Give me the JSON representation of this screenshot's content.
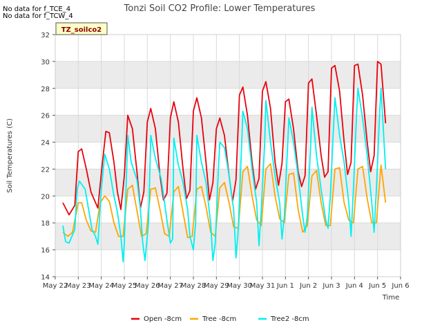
{
  "annotations": [
    "No data for f_TCE_4",
    "No data for f_TCW_4"
  ],
  "site_label": "TZ_soilco2",
  "colors": {
    "open": "#e8000b",
    "tree": "#ffa500",
    "tree2": "#00f0f0",
    "band": "#ebebeb",
    "grid": "#d9d9d9"
  },
  "chart_data": {
    "type": "line",
    "title": "Tonzi Soil CO2 Profile: Lower Temperatures",
    "xlabel": "Time",
    "ylabel": "Soil Temperatures (C)",
    "xlim": [
      0,
      15
    ],
    "ylim": [
      14,
      32
    ],
    "x_ticks": [
      0,
      1,
      2,
      3,
      4,
      5,
      6,
      7,
      8,
      9,
      10,
      11,
      12,
      13,
      14,
      15
    ],
    "x_tick_labels": [
      "May 22",
      "May 23",
      "May 24",
      "May 25",
      "May 26",
      "May 27",
      "May 28",
      "May 29",
      "May 30",
      "May 31",
      "Jun 1",
      "Jun 2",
      "Jun 3",
      "Jun 4",
      "Jun 5",
      "Jun 6"
    ],
    "y_ticks": [
      14,
      16,
      18,
      20,
      22,
      24,
      26,
      28,
      30,
      32
    ],
    "grid": true,
    "legend_position": "bottom",
    "series": [
      {
        "name": "Open -8cm",
        "color": "#e8000b",
        "x": [
          0.33,
          0.6,
          0.85,
          1.0,
          1.15,
          1.35,
          1.55,
          1.85,
          2.05,
          2.2,
          2.35,
          2.55,
          2.7,
          2.85,
          3.0,
          3.15,
          3.35,
          3.55,
          3.7,
          3.85,
          4.0,
          4.15,
          4.35,
          4.55,
          4.7,
          4.85,
          5.0,
          5.15,
          5.35,
          5.55,
          5.7,
          5.85,
          6.0,
          6.15,
          6.35,
          6.55,
          6.7,
          6.85,
          7.0,
          7.15,
          7.35,
          7.55,
          7.7,
          7.85,
          8.0,
          8.15,
          8.35,
          8.55,
          8.7,
          8.85,
          9.0,
          9.15,
          9.35,
          9.55,
          9.7,
          9.85,
          10.0,
          10.15,
          10.35,
          10.55,
          10.7,
          10.85,
          11.0,
          11.15,
          11.35,
          11.55,
          11.7,
          11.85,
          12.0,
          12.15,
          12.35,
          12.55,
          12.7,
          12.85,
          13.0,
          13.15,
          13.35,
          13.55,
          13.7,
          13.85,
          14.0,
          14.15,
          14.35
        ],
        "values": [
          19.5,
          18.6,
          19.3,
          23.3,
          23.5,
          22.0,
          20.3,
          19.1,
          22.5,
          24.8,
          24.7,
          22.5,
          20.3,
          19.0,
          21.5,
          26.0,
          25.0,
          21.8,
          19.1,
          20.3,
          25.5,
          26.5,
          25.0,
          21.5,
          19.7,
          20.2,
          25.8,
          27.0,
          25.5,
          22.0,
          19.8,
          20.4,
          26.3,
          27.3,
          25.8,
          22.5,
          19.7,
          21.0,
          25.0,
          25.8,
          24.5,
          21.5,
          19.6,
          21.2,
          27.5,
          28.1,
          26.0,
          22.5,
          20.5,
          21.3,
          27.8,
          28.5,
          26.5,
          22.5,
          20.8,
          22.4,
          27.0,
          27.2,
          25.0,
          21.8,
          20.7,
          21.5,
          28.4,
          28.7,
          26.0,
          23.0,
          21.4,
          21.8,
          29.5,
          29.7,
          27.8,
          24.0,
          21.6,
          22.5,
          29.7,
          29.8,
          27.5,
          24.0,
          21.8,
          23.0,
          30.0,
          29.8,
          25.4
        ]
      },
      {
        "name": "Tree -8cm",
        "color": "#ffa500",
        "x": [
          0.33,
          0.55,
          0.75,
          1.0,
          1.15,
          1.35,
          1.55,
          1.75,
          1.95,
          2.15,
          2.35,
          2.55,
          2.75,
          2.95,
          3.15,
          3.35,
          3.55,
          3.75,
          3.95,
          4.15,
          4.35,
          4.55,
          4.75,
          4.95,
          5.15,
          5.35,
          5.55,
          5.75,
          5.95,
          6.15,
          6.35,
          6.55,
          6.75,
          6.95,
          7.15,
          7.35,
          7.55,
          7.75,
          7.95,
          8.15,
          8.35,
          8.55,
          8.75,
          8.95,
          9.15,
          9.35,
          9.55,
          9.75,
          9.95,
          10.15,
          10.35,
          10.55,
          10.75,
          10.95,
          11.15,
          11.35,
          11.55,
          11.75,
          11.95,
          12.15,
          12.35,
          12.55,
          12.75,
          12.95,
          13.15,
          13.35,
          13.55,
          13.75,
          13.95,
          14.15,
          14.35
        ],
        "values": [
          17.3,
          17.0,
          17.3,
          19.5,
          19.5,
          18.2,
          17.4,
          17.3,
          19.5,
          20.0,
          19.6,
          18.0,
          17.0,
          17.0,
          20.5,
          20.8,
          18.9,
          17.0,
          17.2,
          20.5,
          20.6,
          19.0,
          17.2,
          17.0,
          20.3,
          20.7,
          18.8,
          16.9,
          17.0,
          20.5,
          20.7,
          19.2,
          17.3,
          17.0,
          20.6,
          21.0,
          19.5,
          17.7,
          17.6,
          21.8,
          22.2,
          20.0,
          18.2,
          17.8,
          22.0,
          22.4,
          20.0,
          18.3,
          18.0,
          21.6,
          21.7,
          19.0,
          17.3,
          17.8,
          21.5,
          21.9,
          19.5,
          17.8,
          17.8,
          22.0,
          22.1,
          19.5,
          18.2,
          18.0,
          22.0,
          22.2,
          19.8,
          18.0,
          18.0,
          22.3,
          19.5
        ]
      },
      {
        "name": "Tree2 -8cm",
        "color": "#00f0f0",
        "x": [
          0.33,
          0.45,
          0.6,
          0.85,
          0.95,
          1.05,
          1.3,
          1.45,
          1.6,
          1.75,
          1.85,
          2.0,
          2.15,
          2.35,
          2.55,
          2.7,
          2.85,
          2.95,
          3.0,
          3.15,
          3.3,
          3.55,
          3.7,
          3.8,
          3.9,
          4.05,
          4.15,
          4.35,
          4.6,
          4.75,
          4.85,
          5.0,
          5.1,
          5.15,
          5.35,
          5.55,
          5.75,
          5.85,
          6.0,
          6.1,
          6.15,
          6.35,
          6.55,
          6.75,
          6.85,
          6.95,
          7.1,
          7.15,
          7.35,
          7.55,
          7.75,
          7.85,
          7.95,
          8.1,
          8.15,
          8.35,
          8.55,
          8.75,
          8.85,
          8.95,
          9.1,
          9.15,
          9.35,
          9.55,
          9.75,
          9.85,
          9.95,
          10.1,
          10.15,
          10.35,
          10.55,
          10.75,
          10.85,
          10.95,
          11.1,
          11.15,
          11.35,
          11.55,
          11.75,
          11.85,
          11.95,
          12.1,
          12.15,
          12.35,
          12.55,
          12.75,
          12.85,
          12.95,
          13.1,
          13.15,
          13.35,
          13.55,
          13.75,
          13.85,
          13.95,
          14.1,
          14.15,
          14.35
        ],
        "values": [
          17.8,
          16.6,
          16.5,
          17.5,
          20.5,
          21.1,
          20.5,
          19.0,
          17.5,
          17.0,
          16.4,
          20.5,
          23.1,
          22.0,
          20.0,
          18.8,
          17.0,
          15.1,
          16.5,
          24.5,
          22.5,
          21.2,
          19.0,
          16.5,
          15.2,
          18.0,
          24.5,
          22.8,
          21.3,
          19.5,
          18.2,
          16.5,
          16.8,
          24.3,
          22.3,
          21.0,
          19.0,
          17.0,
          16.0,
          18.0,
          24.5,
          22.5,
          21.0,
          18.0,
          15.2,
          16.5,
          22.5,
          24.0,
          23.6,
          21.5,
          19.0,
          15.4,
          17.5,
          24.0,
          26.3,
          25.0,
          22.0,
          19.5,
          16.3,
          19.0,
          24.0,
          27.1,
          24.0,
          21.5,
          19.5,
          16.8,
          18.5,
          24.0,
          25.8,
          24.0,
          21.5,
          18.5,
          17.3,
          18.5,
          24.0,
          26.6,
          23.0,
          20.5,
          18.2,
          17.6,
          20.0,
          25.5,
          27.3,
          24.5,
          22.5,
          19.5,
          17.0,
          20.5,
          26.5,
          28.0,
          25.8,
          23.0,
          19.5,
          17.3,
          20.5,
          26.5,
          28.0,
          22.0
        ]
      }
    ]
  }
}
